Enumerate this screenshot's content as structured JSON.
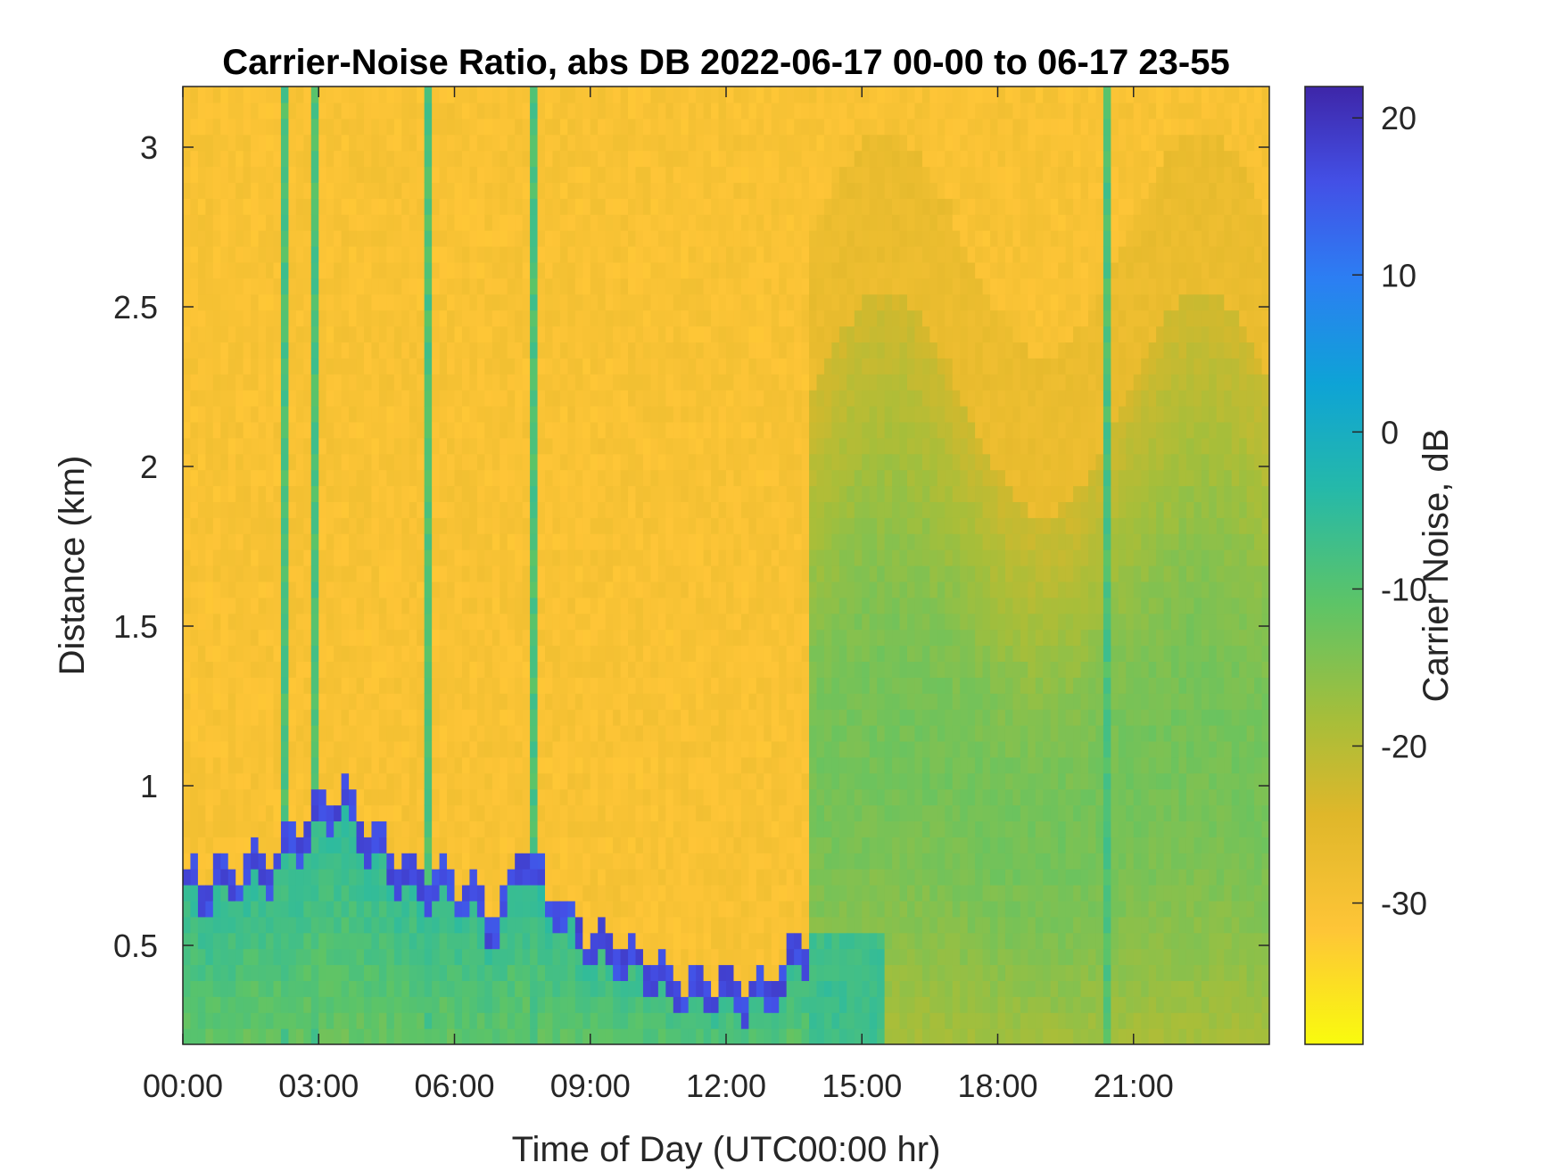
{
  "chart_data": {
    "type": "heatmap",
    "title": "Carrier-Noise Ratio, abs DB 2022-06-17 00-00 to 06-17 23-55",
    "xlabel": "Time of Day (UTC00:00 hr)",
    "ylabel": "Distance (km)",
    "colorbar_label": "Carrier Noise, dB",
    "x_ticks": [
      "00:00",
      "03:00",
      "06:00",
      "09:00",
      "12:00",
      "15:00",
      "18:00",
      "21:00"
    ],
    "x_tick_hours": [
      0,
      3,
      6,
      9,
      12,
      15,
      18,
      21
    ],
    "xlim_hours": [
      0,
      24
    ],
    "y_ticks": [
      "0.5",
      "1",
      "1.5",
      "2",
      "2.5",
      "3"
    ],
    "y_tick_values": [
      0.5,
      1.0,
      1.5,
      2.0,
      2.5,
      3.0
    ],
    "ylim": [
      0.19,
      3.19
    ],
    "colorbar_ticks": [
      "20",
      "10",
      "0",
      "-10",
      "-20",
      "-30"
    ],
    "colorbar_tick_values": [
      20,
      10,
      0,
      -10,
      -20,
      -30
    ],
    "clim": [
      -39,
      22
    ],
    "colormap": [
      "#f9fb0e",
      "#fec537",
      "#dfb72a",
      "#a6be3a",
      "#5dc467",
      "#25b9a9",
      "#0ea3d6",
      "#2c7ef3",
      "#4350e6",
      "#3e26a8"
    ],
    "background_value": -31,
    "features": {
      "boundary_layer_top_km": [
        [
          0.0,
          0.72
        ],
        [
          1.0,
          0.75
        ],
        [
          2.0,
          0.8
        ],
        [
          3.0,
          0.95
        ],
        [
          3.5,
          1.0
        ],
        [
          4.0,
          0.9
        ],
        [
          5.0,
          0.75
        ],
        [
          6.0,
          0.72
        ],
        [
          7.0,
          0.6
        ],
        [
          7.5,
          0.85
        ],
        [
          8.0,
          0.7
        ],
        [
          9.0,
          0.55
        ],
        [
          10.0,
          0.5
        ],
        [
          11.0,
          0.4
        ],
        [
          12.0,
          0.4
        ],
        [
          13.0,
          0.4
        ],
        [
          13.8,
          0.55
        ]
      ],
      "afternoon_layer_region": {
        "start_hour": 13.8,
        "end_hour": 24,
        "value_range": [
          -24,
          -14
        ]
      },
      "vertical_streak_hours": [
        2.0,
        2.2,
        2.9,
        3.0,
        5.4,
        7.7,
        20.4
      ]
    }
  }
}
